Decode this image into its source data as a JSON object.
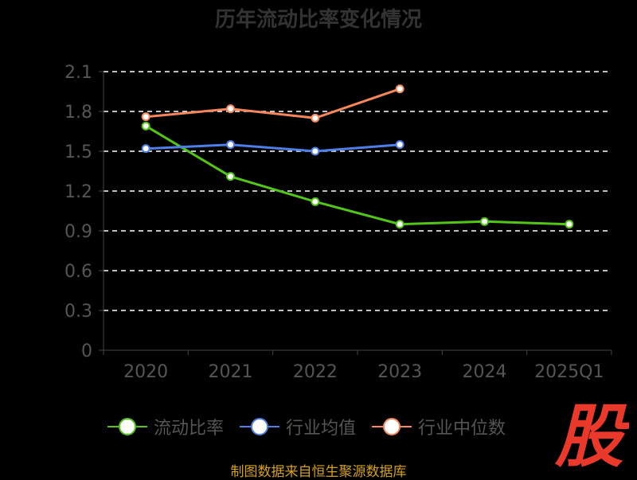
{
  "title": "历年流动比率变化情况",
  "source": "制图数据来自恒生聚源数据库",
  "logo_text": "股",
  "colors": {
    "background": "#000000",
    "grid": "#ffffff",
    "axis": "#444444",
    "tick_text": "#555555",
    "logo": "#e8392b"
  },
  "chart_data": {
    "type": "line",
    "categories": [
      "2020",
      "2021",
      "2022",
      "2023",
      "2024",
      "2025Q1"
    ],
    "ylim": [
      0,
      2.1
    ],
    "yticks": [
      "0",
      "0.3",
      "0.6",
      "0.9",
      "1.2",
      "1.5",
      "1.8",
      "2.1"
    ],
    "grid": true,
    "legend_position": "bottom",
    "series": [
      {
        "name": "流动比率",
        "color": "#52c41a",
        "values": [
          1.69,
          1.31,
          1.12,
          0.95,
          0.97,
          0.95
        ]
      },
      {
        "name": "行业均值",
        "color": "#4e7fe6",
        "values": [
          1.52,
          1.55,
          1.5,
          1.55,
          null,
          null
        ]
      },
      {
        "name": "行业中位数",
        "color": "#f5875a",
        "values": [
          1.76,
          1.82,
          1.75,
          1.97,
          null,
          null
        ]
      }
    ]
  }
}
